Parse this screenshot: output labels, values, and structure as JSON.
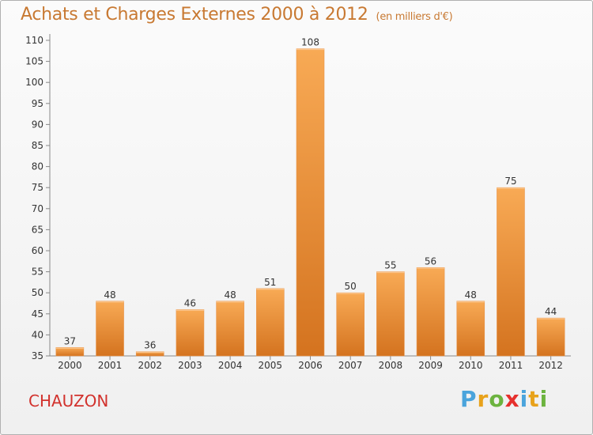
{
  "header": {
    "title": "Achats et Charges Externes 2000 à 2012",
    "subtitle": "(en milliers d'€)"
  },
  "footer": {
    "commune": "CHAUZON",
    "logo_text": "Proxiti"
  },
  "colors": {
    "bar_light": "#f6a64f",
    "bar_dark": "#d4731f",
    "title": "#c87932",
    "commune": "#d2322d"
  },
  "chart_data": {
    "type": "bar",
    "categories": [
      "2000",
      "2001",
      "2002",
      "2003",
      "2004",
      "2005",
      "2006",
      "2007",
      "2008",
      "2009",
      "2010",
      "2011",
      "2012"
    ],
    "values": [
      37,
      48,
      36,
      46,
      48,
      51,
      108,
      50,
      55,
      56,
      48,
      75,
      44
    ],
    "title": "Achats et Charges Externes 2000 à 2012",
    "xlabel": "",
    "ylabel": "",
    "ylim": [
      35,
      110
    ],
    "yticks": [
      35,
      40,
      45,
      50,
      55,
      60,
      65,
      70,
      75,
      80,
      85,
      90,
      95,
      100,
      105,
      110
    ],
    "grid": false,
    "legend": "none"
  }
}
